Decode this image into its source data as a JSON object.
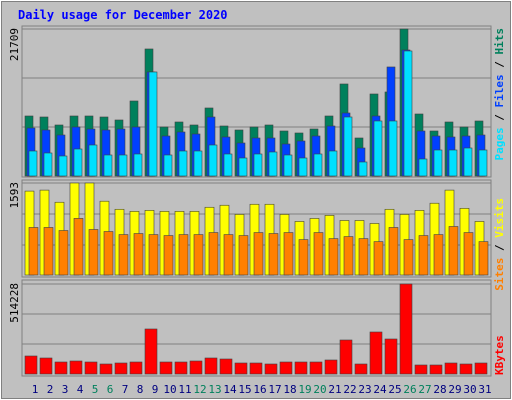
{
  "chart_data": [
    {
      "type": "bar",
      "title": "Daily usage for December 2020",
      "legend_separator": " / ",
      "ylim": [
        0,
        21709
      ],
      "yticks": [
        21709
      ],
      "series": [
        {
          "name": "Hits",
          "color": "#00805c",
          "values": [
            8862,
            8714,
            7533,
            8862,
            8862,
            8714,
            8271,
            11077,
            18758,
            7237,
            7976,
            7533,
            10044,
            7385,
            6794,
            7237,
            7533,
            6647,
            6351,
            6942,
            8862,
            13588,
            5613,
            12111,
            12407,
            21709,
            9157,
            6647,
            7976,
            7237,
            8124
          ]
        },
        {
          "name": "Files",
          "color": "#0040ff",
          "values": [
            7090,
            6794,
            6056,
            7237,
            6942,
            6794,
            6942,
            7237,
            15361,
            5908,
            6499,
            6203,
            8714,
            5760,
            4874,
            5613,
            5613,
            4726,
            5170,
            5908,
            7385,
            9305,
            4136,
            8862,
            16099,
            18611,
            6647,
            5908,
            5760,
            5908,
            6056
          ]
        },
        {
          "name": "Pages",
          "color": "#00e0ff",
          "values": [
            3693,
            3397,
            2954,
            3988,
            4579,
            3102,
            3102,
            3249,
            15361,
            3102,
            3693,
            3693,
            4579,
            3249,
            2659,
            3249,
            3545,
            3102,
            2659,
            3249,
            3693,
            8714,
            2068,
            8124,
            8124,
            18463,
            2511,
            3840,
            3840,
            4136,
            3840
          ]
        }
      ]
    },
    {
      "type": "bar",
      "legend_separator": " / ",
      "ylim": [
        0,
        1593
      ],
      "yticks": [
        1593
      ],
      "series": [
        {
          "name": "Visits",
          "color": "#ffff00",
          "values": [
            1453,
            1470,
            1260,
            1593,
            1593,
            1278,
            1138,
            1103,
            1120,
            1103,
            1103,
            1103,
            1173,
            1208,
            1050,
            1225,
            1225,
            1050,
            928,
            980,
            1033,
            945,
            945,
            893,
            1138,
            1050,
            1120,
            1243,
            1470,
            1155,
            928
          ]
        },
        {
          "name": "Sites",
          "color": "#ff8000",
          "values": [
            823,
            823,
            770,
            980,
            788,
            753,
            700,
            718,
            700,
            683,
            700,
            700,
            735,
            700,
            683,
            735,
            718,
            735,
            613,
            735,
            630,
            665,
            630,
            578,
            823,
            613,
            683,
            700,
            840,
            735,
            578
          ]
        }
      ]
    },
    {
      "type": "bar",
      "ylim": [
        0,
        514228
      ],
      "yticks": [
        514228
      ],
      "categories": [
        "1",
        "2",
        "3",
        "4",
        "5",
        "6",
        "7",
        "8",
        "9",
        "10",
        "11",
        "12",
        "13",
        "14",
        "15",
        "16",
        "17",
        "18",
        "19",
        "20",
        "21",
        "22",
        "23",
        "24",
        "25",
        "26",
        "27",
        "28",
        "29",
        "30",
        "31"
      ],
      "category_colors": [
        "#000080",
        "#000080",
        "#000080",
        "#000080",
        "#00805c",
        "#00805c",
        "#000080",
        "#000080",
        "#000080",
        "#000080",
        "#000080",
        "#00805c",
        "#00805c",
        "#000080",
        "#000080",
        "#000080",
        "#000080",
        "#000080",
        "#00805c",
        "#00805c",
        "#000080",
        "#000080",
        "#000080",
        "#000080",
        "#000080",
        "#00805c",
        "#00805c",
        "#000080",
        "#000080",
        "#000080",
        "#000080"
      ],
      "series": [
        {
          "name": "KBytes",
          "color": "#ff0000",
          "values": [
            102852,
            91424,
            68568,
            74282,
            68568,
            57140,
            62854,
            68568,
            257130,
            68568,
            68568,
            74282,
            91424,
            85710,
            62854,
            62854,
            57140,
            68568,
            68568,
            68568,
            79996,
            194276,
            57140,
            239988,
            199990,
            514228,
            51426,
            51426,
            62854,
            57140,
            62854
          ]
        }
      ]
    }
  ]
}
